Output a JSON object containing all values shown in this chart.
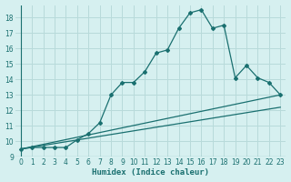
{
  "xlabel": "Humidex (Indice chaleur)",
  "bg_color": "#d6f0f0",
  "grid_color": "#b8dada",
  "line_color": "#1a7070",
  "xlim": [
    -0.5,
    23.5
  ],
  "ylim": [
    9,
    18.8
  ],
  "xticks": [
    0,
    1,
    2,
    3,
    4,
    5,
    6,
    7,
    8,
    9,
    10,
    11,
    12,
    13,
    14,
    15,
    16,
    17,
    18,
    19,
    20,
    21,
    22,
    23
  ],
  "yticks": [
    9,
    10,
    11,
    12,
    13,
    14,
    15,
    16,
    17,
    18
  ],
  "curve1_x": [
    0,
    1,
    2,
    3,
    4,
    5,
    6,
    7,
    8,
    9,
    10,
    11,
    12,
    13,
    14,
    15,
    16,
    17,
    18,
    19,
    20,
    21,
    22,
    23
  ],
  "curve1_y": [
    9.5,
    9.6,
    9.6,
    9.6,
    9.6,
    10.1,
    10.5,
    11.2,
    13.0,
    13.8,
    13.8,
    14.5,
    15.7,
    15.9,
    17.3,
    18.3,
    18.5,
    17.3,
    17.5,
    14.1,
    14.9,
    14.1,
    13.8,
    13.0
  ],
  "curve2_x": [
    0,
    23
  ],
  "curve2_y": [
    9.5,
    13.0
  ],
  "curve3_x": [
    0,
    23
  ],
  "curve3_y": [
    9.5,
    12.2
  ]
}
